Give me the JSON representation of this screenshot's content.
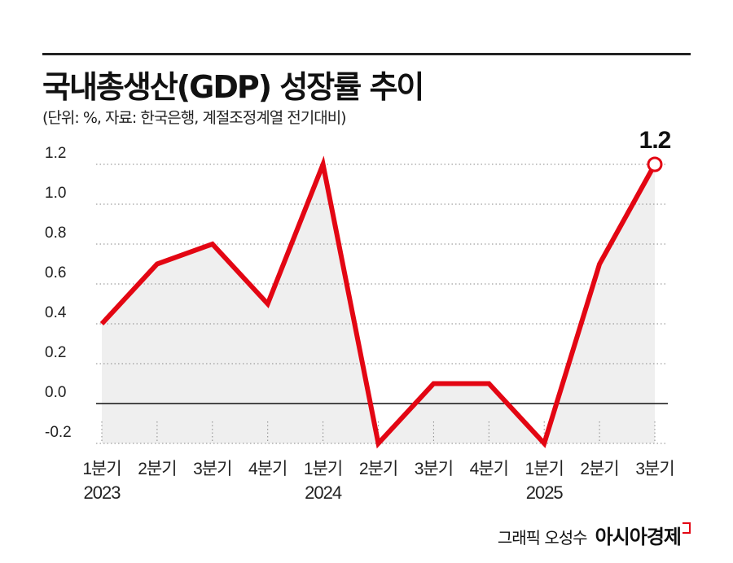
{
  "title": "국내총생산(GDP) 성장률 추이",
  "subtitle": "(단위: %, 자료: 한국은행, 계절조정계열 전기대비)",
  "footer": {
    "credit": "그래픽 오성수",
    "brand": "아시아경제"
  },
  "colors": {
    "line": "#e30613",
    "area": "#efefef",
    "grid": "#888888"
  },
  "chart_data": {
    "type": "line",
    "categories": [
      "1분기",
      "2분기",
      "3분기",
      "4분기",
      "1분기",
      "2분기",
      "3분기",
      "4분기",
      "1분기",
      "2분기",
      "3분기"
    ],
    "year_labels": [
      {
        "index": 0,
        "label": "2023"
      },
      {
        "index": 4,
        "label": "2024"
      },
      {
        "index": 8,
        "label": "2025"
      }
    ],
    "values": [
      0.4,
      0.7,
      0.8,
      0.5,
      1.2,
      -0.2,
      0.1,
      0.1,
      -0.2,
      0.7,
      1.2
    ],
    "yticks": [
      "1.2",
      "1.0",
      "0.8",
      "0.6",
      "0.4",
      "0.2",
      "0.0",
      "-0.2"
    ],
    "ylim": [
      -0.2,
      1.2
    ],
    "grid": true,
    "annotation": {
      "index": 10,
      "label": "1.2"
    }
  }
}
